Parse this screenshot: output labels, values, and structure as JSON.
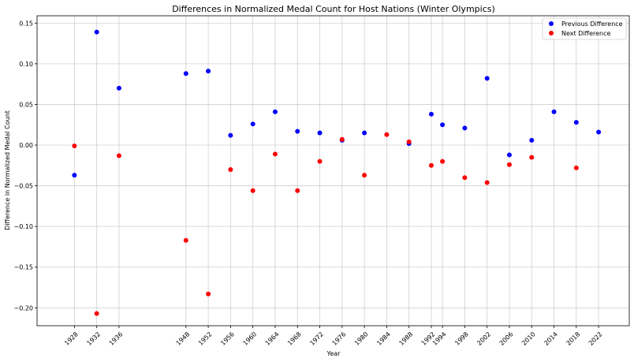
{
  "chart_data": {
    "type": "scatter",
    "title": "Differences in Normalized Medal Count for Host Nations (Winter Olympics)",
    "xlabel": "Year",
    "ylabel": "Difference in Normalized Medal Count",
    "x_ticks": [
      1928,
      1932,
      1936,
      1948,
      1952,
      1956,
      1960,
      1964,
      1968,
      1972,
      1976,
      1980,
      1984,
      1988,
      1992,
      1994,
      1998,
      2002,
      2006,
      2010,
      2014,
      2018,
      2022
    ],
    "xlim": [
      1921.3,
      2027.5
    ],
    "y_ticks": [
      -0.2,
      -0.15,
      -0.1,
      -0.05,
      0.0,
      0.05,
      0.1,
      0.15
    ],
    "y_tick_labels": [
      "−0.20",
      "−0.15",
      "−0.10",
      "−0.05",
      "0.00",
      "0.05",
      "0.10",
      "0.15"
    ],
    "ylim": [
      -0.222,
      0.159
    ],
    "grid": true,
    "legend_position": "top-right",
    "series": [
      {
        "name": "Previous Difference",
        "color": "#0000ff",
        "points": [
          [
            1928,
            -0.037
          ],
          [
            1932,
            0.139
          ],
          [
            1936,
            0.07
          ],
          [
            1948,
            0.088
          ],
          [
            1952,
            0.091
          ],
          [
            1956,
            0.012
          ],
          [
            1960,
            0.026
          ],
          [
            1964,
            0.041
          ],
          [
            1968,
            0.017
          ],
          [
            1972,
            0.015
          ],
          [
            1976,
            0.006
          ],
          [
            1980,
            0.015
          ],
          [
            1988,
            0.002
          ],
          [
            1992,
            0.038
          ],
          [
            1994,
            0.025
          ],
          [
            1998,
            0.021
          ],
          [
            2002,
            0.082
          ],
          [
            2006,
            -0.012
          ],
          [
            2010,
            0.006
          ],
          [
            2014,
            0.041
          ],
          [
            2018,
            0.028
          ],
          [
            2022,
            0.016
          ]
        ]
      },
      {
        "name": "Next Difference",
        "color": "#ff0000",
        "points": [
          [
            1928,
            -0.001
          ],
          [
            1932,
            -0.207
          ],
          [
            1936,
            -0.013
          ],
          [
            1948,
            -0.117
          ],
          [
            1952,
            -0.183
          ],
          [
            1956,
            -0.03
          ],
          [
            1960,
            -0.056
          ],
          [
            1964,
            -0.011
          ],
          [
            1968,
            -0.056
          ],
          [
            1972,
            -0.02
          ],
          [
            1976,
            0.007
          ],
          [
            1980,
            -0.037
          ],
          [
            1984,
            0.013
          ],
          [
            1988,
            0.004
          ],
          [
            1992,
            -0.025
          ],
          [
            1994,
            -0.02
          ],
          [
            1998,
            -0.04
          ],
          [
            2002,
            -0.046
          ],
          [
            2006,
            -0.024
          ],
          [
            2010,
            -0.015
          ],
          [
            2018,
            -0.028
          ]
        ]
      }
    ]
  }
}
